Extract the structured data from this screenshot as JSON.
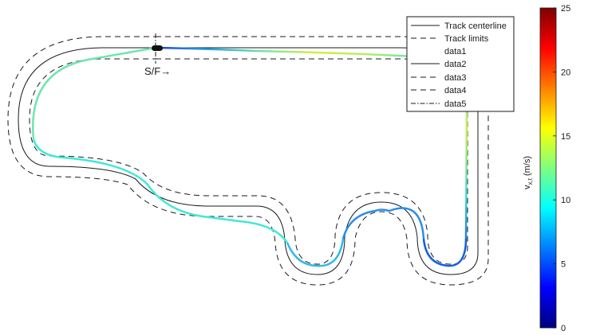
{
  "chart_data": {
    "type": "line",
    "title": "",
    "xlabel": "",
    "ylabel": "",
    "annotations": [
      {
        "name": "start-finish-label",
        "text": "S/F→"
      }
    ],
    "legend": {
      "placement": "top-right",
      "entries": [
        {
          "label": "Track centerline",
          "style": "solid"
        },
        {
          "label": "Track limits",
          "style": "dashed"
        },
        {
          "label": "data1",
          "style": "none"
        },
        {
          "label": "data2",
          "style": "solid"
        },
        {
          "label": "data3",
          "style": "dashed"
        },
        {
          "label": "data4",
          "style": "dashed"
        },
        {
          "label": "data5",
          "style": "dashdot"
        }
      ]
    },
    "colorbar": {
      "label": "v",
      "label_sub": "x,t",
      "label_unit": " (m/s)",
      "range": [
        0,
        25
      ],
      "ticks": [
        "0",
        "5",
        "10",
        "15",
        "20",
        "25"
      ],
      "colormap": "jet",
      "colormap_stops": [
        "#00007f",
        "#0000ff",
        "#007fff",
        "#00ffff",
        "#7fff7f",
        "#ffff00",
        "#ff7f00",
        "#ff0000",
        "#7f0000"
      ]
    },
    "speed_trace_colors": {
      "start_straight": [
        "#1f3fd0",
        "#20a8e8",
        "#7de6a0",
        "#d6ee40",
        "#b8ee60",
        "#7fe6a0"
      ],
      "left_hairpin": "#40e8d8",
      "esses": "#38e0d8",
      "hairpin_bottoms": "#1060e0",
      "right_straight": "#80e880"
    }
  }
}
